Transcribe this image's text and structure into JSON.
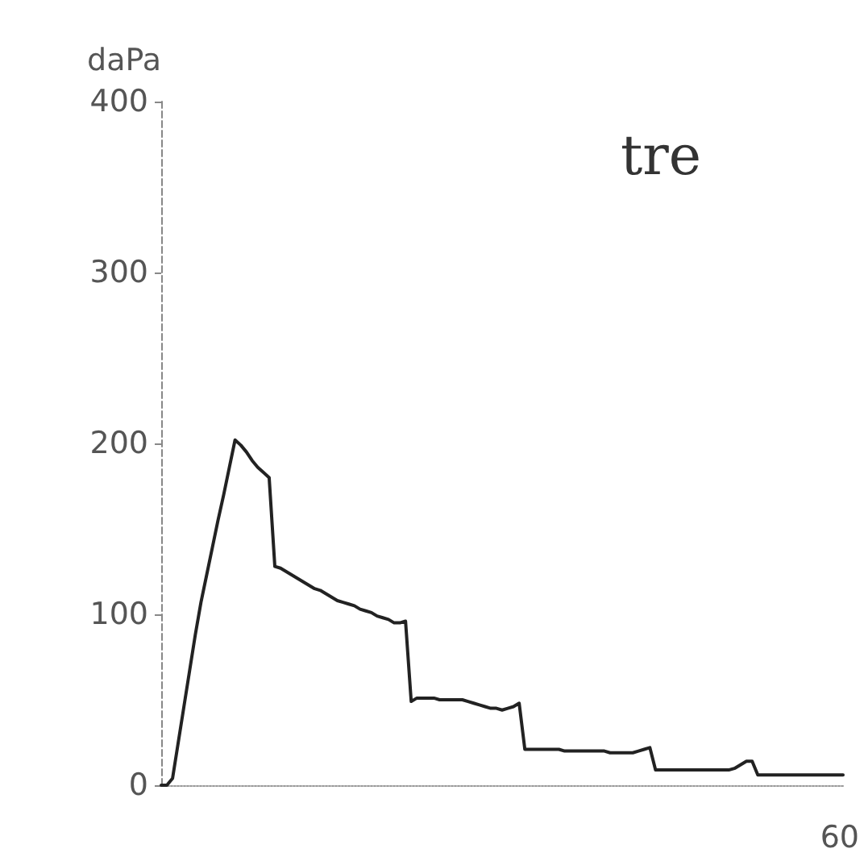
{
  "chart_data": {
    "type": "line",
    "ylabel": "daPa",
    "annotations": [
      "tre",
      "60"
    ],
    "categories": [
      null,
      null,
      null,
      null,
      null,
      null,
      null,
      null,
      null,
      null,
      null,
      null,
      null,
      null,
      null,
      null,
      null,
      null,
      null,
      null,
      null,
      null,
      null,
      null,
      null,
      null,
      null,
      null,
      null,
      null,
      null,
      null,
      null,
      null,
      null,
      null,
      null,
      null,
      null,
      null,
      null,
      null,
      null,
      null,
      null,
      null,
      null,
      null,
      null,
      null,
      null,
      null,
      null,
      null,
      null,
      null,
      null,
      null,
      null,
      null,
      null,
      null,
      null,
      null,
      null,
      null,
      null,
      null,
      null,
      null,
      null,
      null,
      null,
      null,
      null,
      null,
      null,
      null,
      null,
      null,
      null,
      null,
      null,
      null,
      null,
      null,
      null,
      null,
      null,
      null,
      null,
      null,
      null,
      null,
      null,
      null,
      null,
      null,
      null,
      null,
      null,
      null,
      null,
      null,
      null,
      null,
      null,
      null,
      null,
      null,
      null,
      null,
      null,
      null,
      null,
      null,
      null,
      null,
      null,
      null,
      null
    ],
    "series": [
      {
        "color": "#222222",
        "values": [
          0,
          0,
          4,
          25,
          46,
          67,
          88,
          107,
          123,
          139,
          155,
          170,
          186,
          202,
          199,
          195,
          190,
          186,
          183,
          180,
          128,
          127,
          125,
          123,
          121,
          119,
          117,
          115,
          114,
          112,
          110,
          108,
          107,
          106,
          105,
          103,
          102,
          101,
          99,
          98,
          97,
          95,
          95,
          96,
          49,
          51,
          51,
          51,
          51,
          50,
          50,
          50,
          50,
          50,
          49,
          48,
          47,
          46,
          45,
          45,
          44,
          45,
          46,
          48,
          21,
          21,
          21,
          21,
          21,
          21,
          21,
          20,
          20,
          20,
          20,
          20,
          20,
          20,
          20,
          19,
          19,
          19,
          19,
          19,
          20,
          21,
          22,
          9,
          9,
          9,
          9,
          9,
          9,
          9,
          9,
          9,
          9,
          9,
          9,
          9,
          9,
          10,
          12,
          14,
          14,
          6,
          6,
          6,
          6,
          6,
          6,
          6,
          6,
          6,
          6,
          6,
          6,
          6,
          6,
          6,
          6
        ]
      }
    ],
    "ylim": [
      0,
      400
    ],
    "yticks": [
      0,
      100,
      200,
      300,
      400
    ],
    "tick_labels": "y",
    "grid": false,
    "marker": "none",
    "line_style": "solid"
  }
}
